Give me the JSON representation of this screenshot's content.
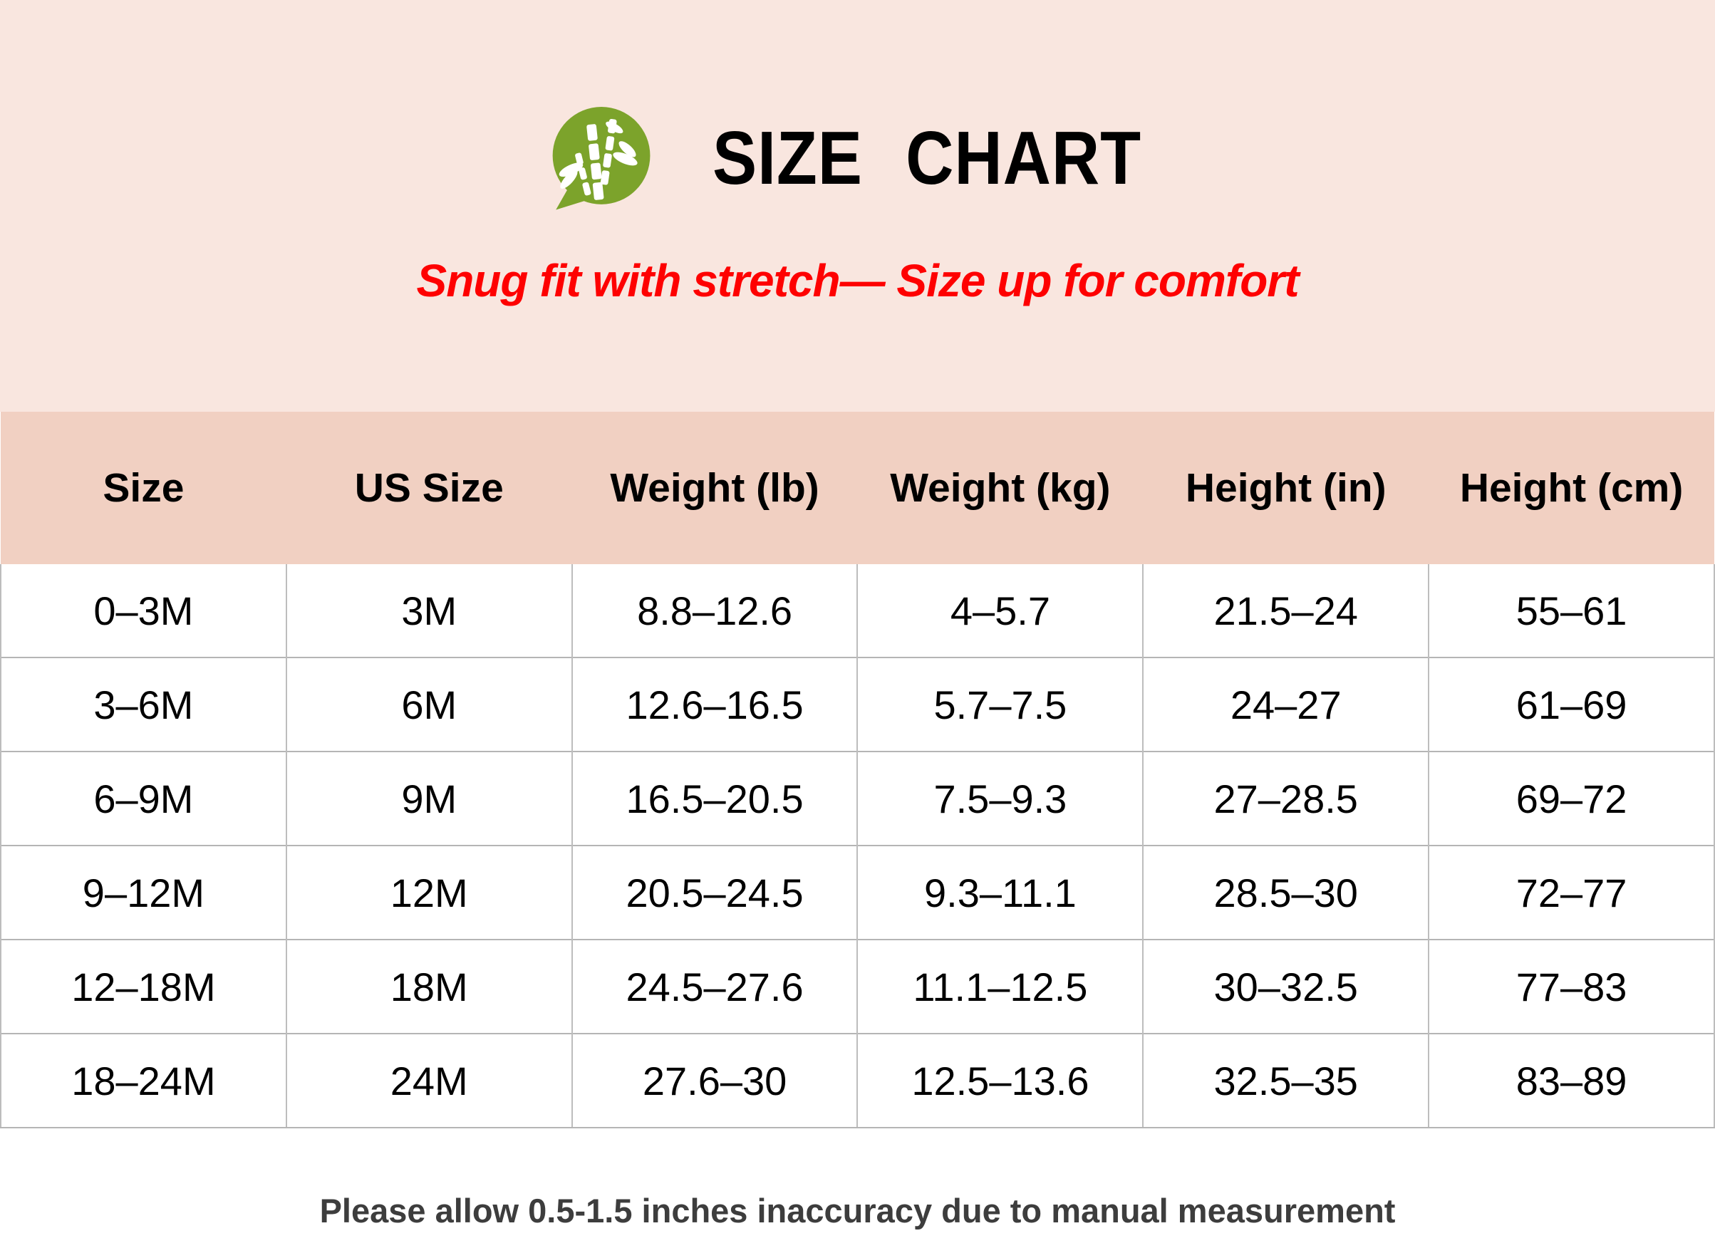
{
  "header": {
    "logo_icon": "bamboo-icon",
    "title": "SIZE CHART",
    "subtitle": "Snug fit with stretch— Size up for comfort"
  },
  "footer": {
    "note": "Please allow 0.5-1.5 inches inaccuracy due to manual measurement"
  },
  "colors": {
    "hero_background": "#f9e6df",
    "table_header_background": "#f1d0c2",
    "subtitle_red": "#fe0101",
    "logo_green": "#7ca32b",
    "divider_gray": "#b5b5b5",
    "footnote_gray": "#3d3d3d"
  },
  "chart_data": {
    "type": "table",
    "title": "SIZE CHART",
    "headers": [
      "Size",
      "US Size",
      "Weight (lb)",
      "Weight (kg)",
      "Height (in)",
      "Height (cm)"
    ],
    "rows": [
      [
        "0–3M",
        "3M",
        "8.8–12.6",
        "4–5.7",
        "21.5–24",
        "55–61"
      ],
      [
        "3–6M",
        "6M",
        "12.6–16.5",
        "5.7–7.5",
        "24–27",
        "61–69"
      ],
      [
        "6–9M",
        "9M",
        "16.5–20.5",
        "7.5–9.3",
        "27–28.5",
        "69–72"
      ],
      [
        "9–12M",
        "12M",
        "20.5–24.5",
        "9.3–11.1",
        "28.5–30",
        "72–77"
      ],
      [
        "12–18M",
        "18M",
        "24.5–27.6",
        "11.1–12.5",
        "30–32.5",
        "77–83"
      ],
      [
        "18–24M",
        "24M",
        "27.6–30",
        "12.5–13.6",
        "32.5–35",
        "83–89"
      ]
    ]
  }
}
